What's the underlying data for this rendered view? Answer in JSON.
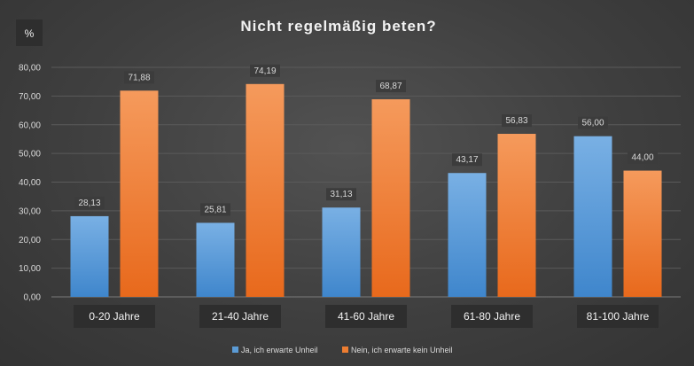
{
  "chart_data": {
    "type": "bar",
    "title": "Nicht regelmäßig beten?",
    "ylabel": "%",
    "xlabel": "",
    "ylim": [
      0,
      80
    ],
    "yticks": [
      "0,00",
      "10,00",
      "20,00",
      "30,00",
      "40,00",
      "50,00",
      "60,00",
      "70,00",
      "80,00"
    ],
    "categories": [
      "0-20 Jahre",
      "21-40 Jahre",
      "41-60 Jahre",
      "61-80 Jahre",
      "81-100 Jahre"
    ],
    "series": [
      {
        "name": "Ja, ich erwarte Unheil",
        "values": [
          28.13,
          25.81,
          31.13,
          43.17,
          56.0
        ],
        "labels": [
          "28,13",
          "25,81",
          "31,13",
          "43,17",
          "56,00"
        ],
        "color": "#5b9bd5"
      },
      {
        "name": "Nein, ich erwarte kein Unheil",
        "values": [
          71.88,
          74.19,
          68.87,
          56.83,
          44.0
        ],
        "labels": [
          "71,88",
          "74,19",
          "68,87",
          "56,83",
          "44,00"
        ],
        "color": "#ed7d31"
      }
    ],
    "grid": true,
    "legend": "bottom"
  }
}
